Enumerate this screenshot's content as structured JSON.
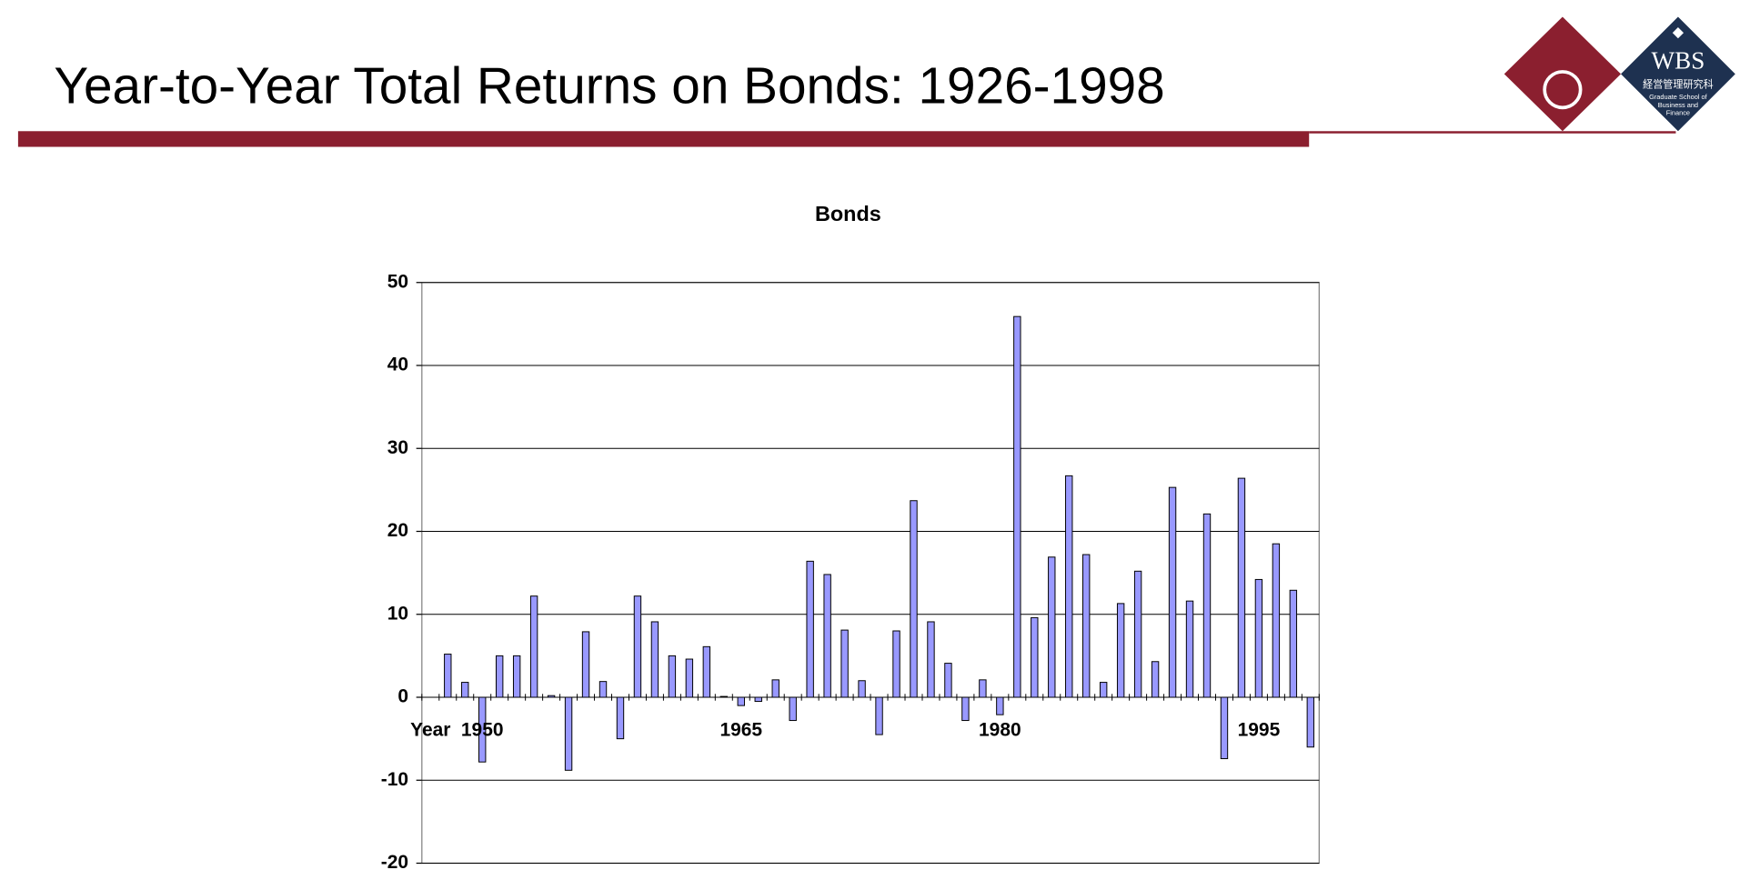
{
  "header": {
    "title": "Year-to-Year Total Returns on Bonds: 1926-1998"
  },
  "logo": {
    "name": "WBS",
    "subtitle_ja": "経営管理研究科",
    "subtitle_en": [
      "Graduate School of",
      "Business and",
      "Finance"
    ]
  },
  "chart_data": {
    "type": "bar",
    "title": "Bonds",
    "color": "#9999ff",
    "grid": true,
    "categories": [
      "Year",
      null,
      null,
      "1950",
      null,
      null,
      null,
      null,
      null,
      null,
      null,
      null,
      null,
      null,
      null,
      null,
      null,
      null,
      "1965",
      null,
      null,
      null,
      null,
      null,
      null,
      null,
      null,
      null,
      null,
      null,
      null,
      null,
      null,
      "1980",
      null,
      null,
      null,
      null,
      null,
      null,
      null,
      null,
      null,
      null,
      null,
      null,
      null,
      null,
      "1995",
      null,
      null,
      null
    ],
    "values": [
      0,
      5.2,
      1.8,
      -7.8,
      5.0,
      5.0,
      12.2,
      0.2,
      -8.8,
      7.9,
      1.9,
      -5.0,
      12.2,
      9.1,
      5.0,
      4.6,
      6.1,
      0.1,
      -1.0,
      -0.5,
      2.1,
      -2.8,
      16.4,
      14.8,
      8.1,
      2.0,
      -4.5,
      8.0,
      23.7,
      9.1,
      4.1,
      -2.8,
      2.1,
      -2.1,
      45.9,
      9.6,
      16.9,
      26.7,
      17.2,
      1.8,
      11.3,
      15.2,
      4.3,
      25.3,
      11.6,
      22.1,
      -7.4,
      26.4,
      14.2,
      18.5,
      12.9,
      -6.0
    ],
    "ylim": [
      -20,
      50
    ],
    "yticks": [
      -20,
      -10,
      0,
      10,
      20,
      30,
      40,
      50
    ]
  }
}
